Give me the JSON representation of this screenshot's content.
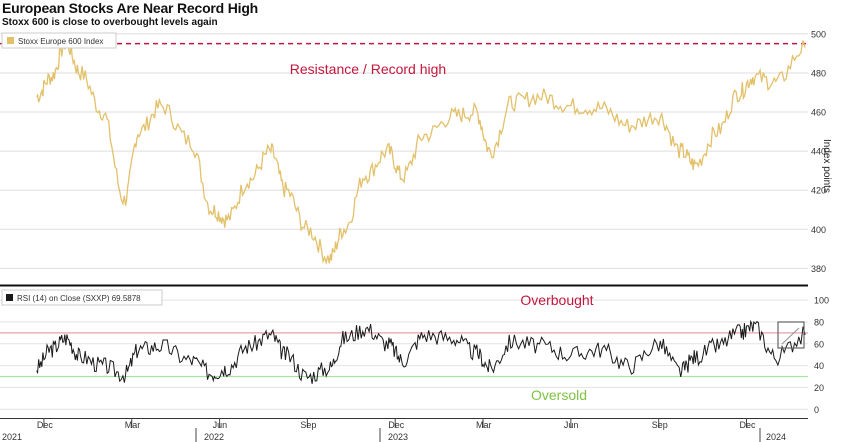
{
  "title": "European Stocks Are Near Record High",
  "subtitle": "Stoxx 600 is close to overbought levels again",
  "colors": {
    "price_line": "#e3c16b",
    "rsi_line": "#1a1a1a",
    "resistance": "#c4163c",
    "overbought_line": "#e8a0a8",
    "oversold_line": "#a6e3a0",
    "overbought_label": "#c4163c",
    "oversold_label": "#7dc242"
  },
  "chart_data": [
    {
      "type": "line",
      "legend": "Stoxx Europe 600 Index",
      "ylabel": "Index points",
      "ylim": [
        372,
        503
      ],
      "yticks": [
        "380",
        "400",
        "420",
        "440",
        "460",
        "480",
        "500"
      ],
      "annotation": {
        "text": "Resistance / Record high",
        "value": 495
      },
      "x": [
        "2021-12",
        "2021-12",
        "2022-01",
        "2022-01",
        "2022-02",
        "2022-03",
        "2022-03",
        "2022-04",
        "2022-05",
        "2022-06",
        "2022-06",
        "2022-07",
        "2022-08",
        "2022-08",
        "2022-09",
        "2022-10",
        "2022-10",
        "2022-11",
        "2022-12",
        "2022-12",
        "2023-01",
        "2023-02",
        "2023-03",
        "2023-03",
        "2023-04",
        "2023-05",
        "2023-06",
        "2023-07",
        "2023-08",
        "2023-09",
        "2023-10",
        "2023-10",
        "2023-11",
        "2023-12",
        "2023-12",
        "2024-01",
        "2024-02"
      ],
      "values": [
        468,
        478,
        495,
        480,
        460,
        415,
        450,
        463,
        445,
        410,
        405,
        425,
        440,
        420,
        400,
        385,
        400,
        428,
        440,
        427,
        448,
        458,
        460,
        440,
        465,
        468,
        463,
        462,
        453,
        458,
        440,
        433,
        450,
        470,
        478,
        475,
        493
      ]
    },
    {
      "type": "line",
      "legend": "RSI (14)  on Close (SXXP) 69.5878",
      "ylim": [
        -8,
        112
      ],
      "yticks": [
        "0",
        "20",
        "40",
        "60",
        "80",
        "100"
      ],
      "reference_lines": [
        {
          "label": "Overbought",
          "value": 70
        },
        {
          "label": "Oversold",
          "value": 30
        }
      ],
      "x": [
        "2021-12",
        "2021-12",
        "2022-01",
        "2022-01",
        "2022-02",
        "2022-03",
        "2022-03",
        "2022-04",
        "2022-05",
        "2022-06",
        "2022-06",
        "2022-07",
        "2022-08",
        "2022-08",
        "2022-09",
        "2022-10",
        "2022-10",
        "2022-11",
        "2022-12",
        "2022-12",
        "2023-01",
        "2023-02",
        "2023-03",
        "2023-03",
        "2023-04",
        "2023-05",
        "2023-06",
        "2023-07",
        "2023-08",
        "2023-09",
        "2023-10",
        "2023-10",
        "2023-11",
        "2023-12",
        "2023-12",
        "2024-01",
        "2024-02"
      ],
      "values": [
        38,
        55,
        65,
        48,
        40,
        32,
        55,
        58,
        45,
        33,
        38,
        58,
        68,
        50,
        30,
        38,
        65,
        74,
        60,
        45,
        68,
        65,
        52,
        38,
        62,
        58,
        50,
        55,
        40,
        60,
        35,
        48,
        58,
        70,
        76,
        48,
        68
      ]
    }
  ],
  "x_axis": {
    "ticks": [
      "Dec",
      "Mar",
      "Jun",
      "Sep",
      "Dec",
      "Mar",
      "Jun",
      "Sep",
      "Dec"
    ],
    "years": [
      "2021",
      "2022",
      "2023",
      "2024"
    ]
  }
}
